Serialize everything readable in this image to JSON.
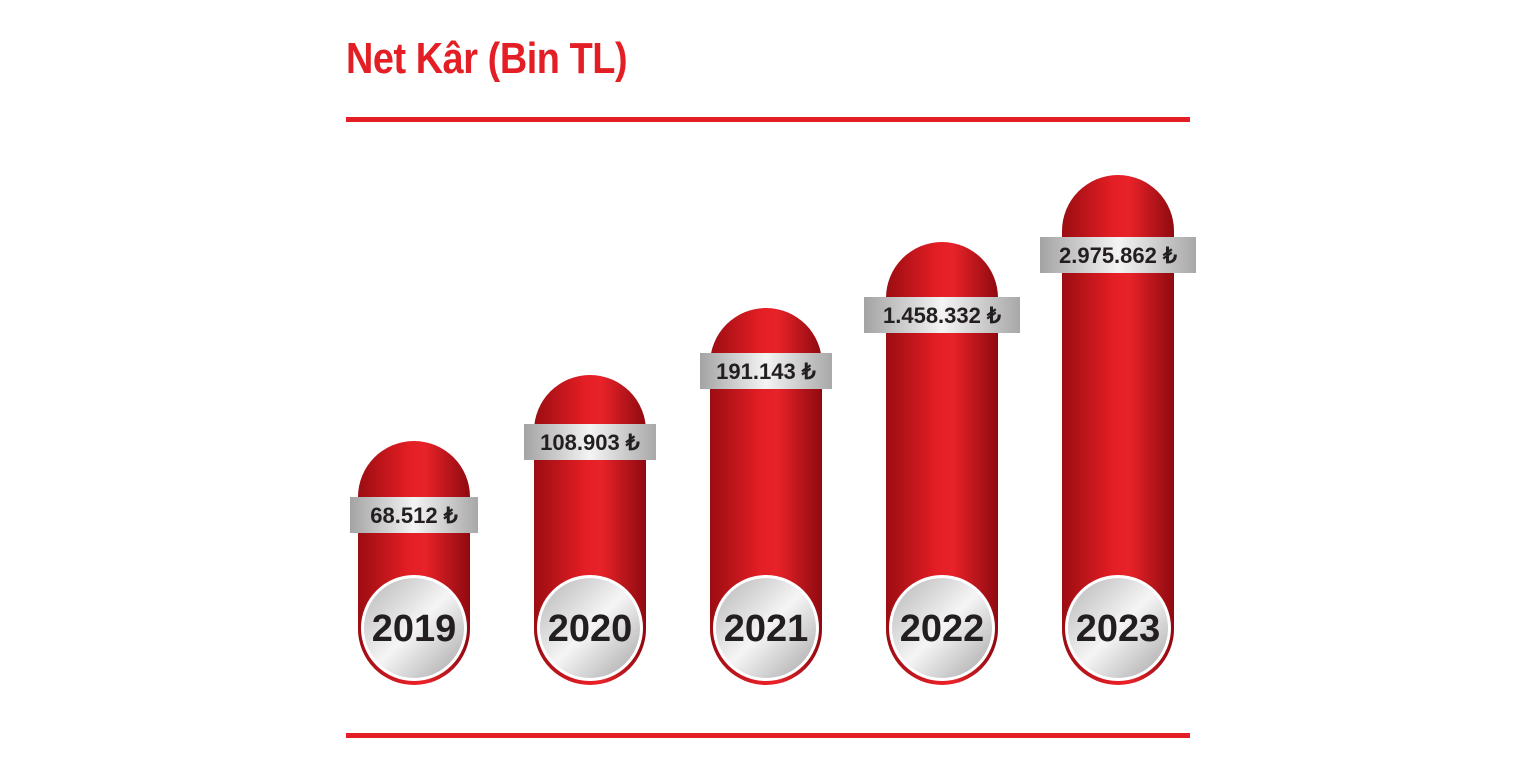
{
  "header": {
    "title": "Net Kâr (Bin TL)"
  },
  "colors": {
    "accent": "#e31e24",
    "bar_dark": "#9b0d12",
    "silver_light": "#f3f3f3",
    "silver_dark": "#a9a9a9",
    "text": "#231f20"
  },
  "chart_data": {
    "type": "bar",
    "title": "Net Kâr (Bin TL)",
    "xlabel": "",
    "ylabel": "",
    "categories": [
      "2019",
      "2020",
      "2021",
      "2022",
      "2023"
    ],
    "values": [
      68512,
      108903,
      191143,
      1458332,
      2975862
    ],
    "value_labels": [
      "68.512 ₺",
      "108.903 ₺",
      "191.143 ₺",
      "1.458.332 ₺",
      "2.975.862 ₺"
    ],
    "grid": false,
    "legend": "none"
  }
}
